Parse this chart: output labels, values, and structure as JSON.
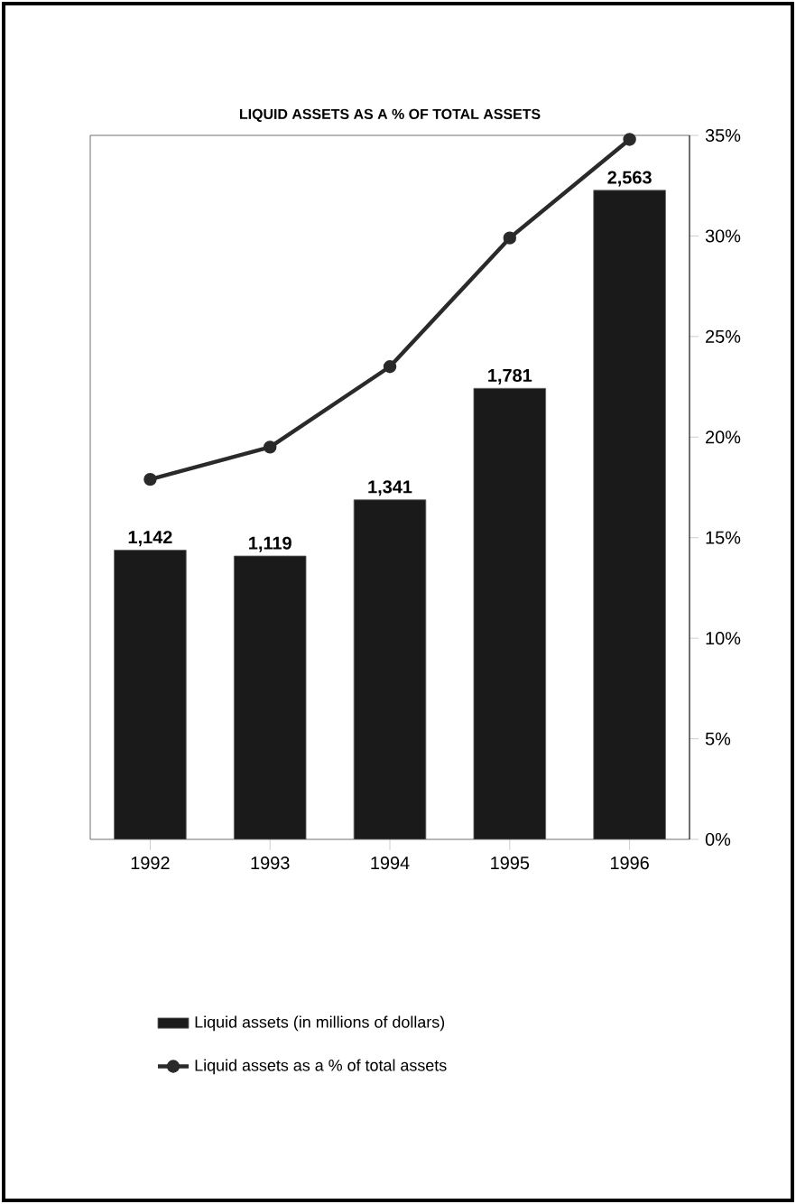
{
  "chart_data": {
    "type": "bar",
    "title": "LIQUID ASSETS AS A % OF TOTAL ASSETS",
    "categories": [
      "1992",
      "1993",
      "1994",
      "1995",
      "1996"
    ],
    "series": [
      {
        "name": "Liquid assets (in millions of dollars)",
        "color": "#1a1a1a",
        "values": [
          1142,
          1119,
          1341,
          1781,
          2563
        ],
        "value_labels": [
          "1,142",
          "1,119",
          "1,341",
          "1,781",
          "2,563"
        ]
      },
      {
        "name": "Liquid assets as a % of total assets",
        "type": "line",
        "axis": "y2",
        "color": "#2a2a2a",
        "values": [
          17.9,
          19.5,
          23.5,
          29.9,
          34.8
        ]
      }
    ],
    "ylim": [
      0,
      2780
    ],
    "y2lim": [
      0,
      35
    ],
    "y2ticks": [
      {
        "value": 0,
        "label": "0%"
      },
      {
        "value": 5,
        "label": "5%"
      },
      {
        "value": 10,
        "label": "10%"
      },
      {
        "value": 15,
        "label": "15%"
      },
      {
        "value": 20,
        "label": "20%"
      },
      {
        "value": 25,
        "label": "25%"
      },
      {
        "value": 30,
        "label": "30%"
      },
      {
        "value": 35,
        "label": "35%"
      }
    ],
    "legend": "bottom",
    "marker": "circle",
    "line_style": "solid"
  }
}
